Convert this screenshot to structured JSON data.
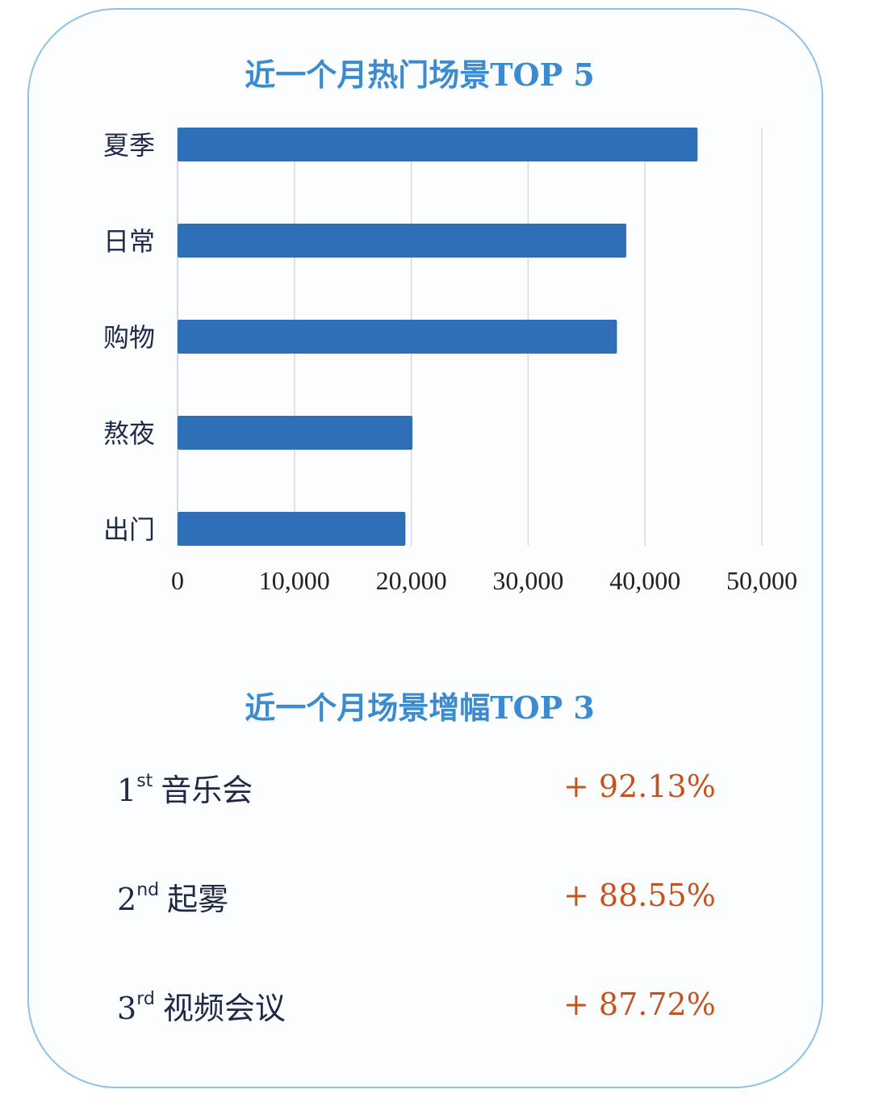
{
  "chart_data": {
    "type": "bar",
    "orientation": "horizontal",
    "title": "近一个月热门场景TOP 5",
    "categories": [
      "夏季",
      "日常",
      "购物",
      "熬夜",
      "出门"
    ],
    "values": [
      44500,
      38400,
      37600,
      20100,
      19500
    ],
    "xlim": [
      0,
      50000
    ],
    "xticks": [
      "0",
      "10,000",
      "20,000",
      "30,000",
      "40,000",
      "50,000"
    ],
    "grid": "vertical",
    "bar_color": "#2e6fb8"
  },
  "growth": {
    "title": "近一个月场景增幅TOP 3",
    "items": [
      {
        "rank": "1",
        "suffix": "st",
        "name": "音乐会",
        "value": "+ 92.13%"
      },
      {
        "rank": "2",
        "suffix": "nd",
        "name": "起雾",
        "value": "+ 88.55%"
      },
      {
        "rank": "3",
        "suffix": "rd",
        "name": "视频会议",
        "value": "+ 87.72%"
      }
    ]
  }
}
